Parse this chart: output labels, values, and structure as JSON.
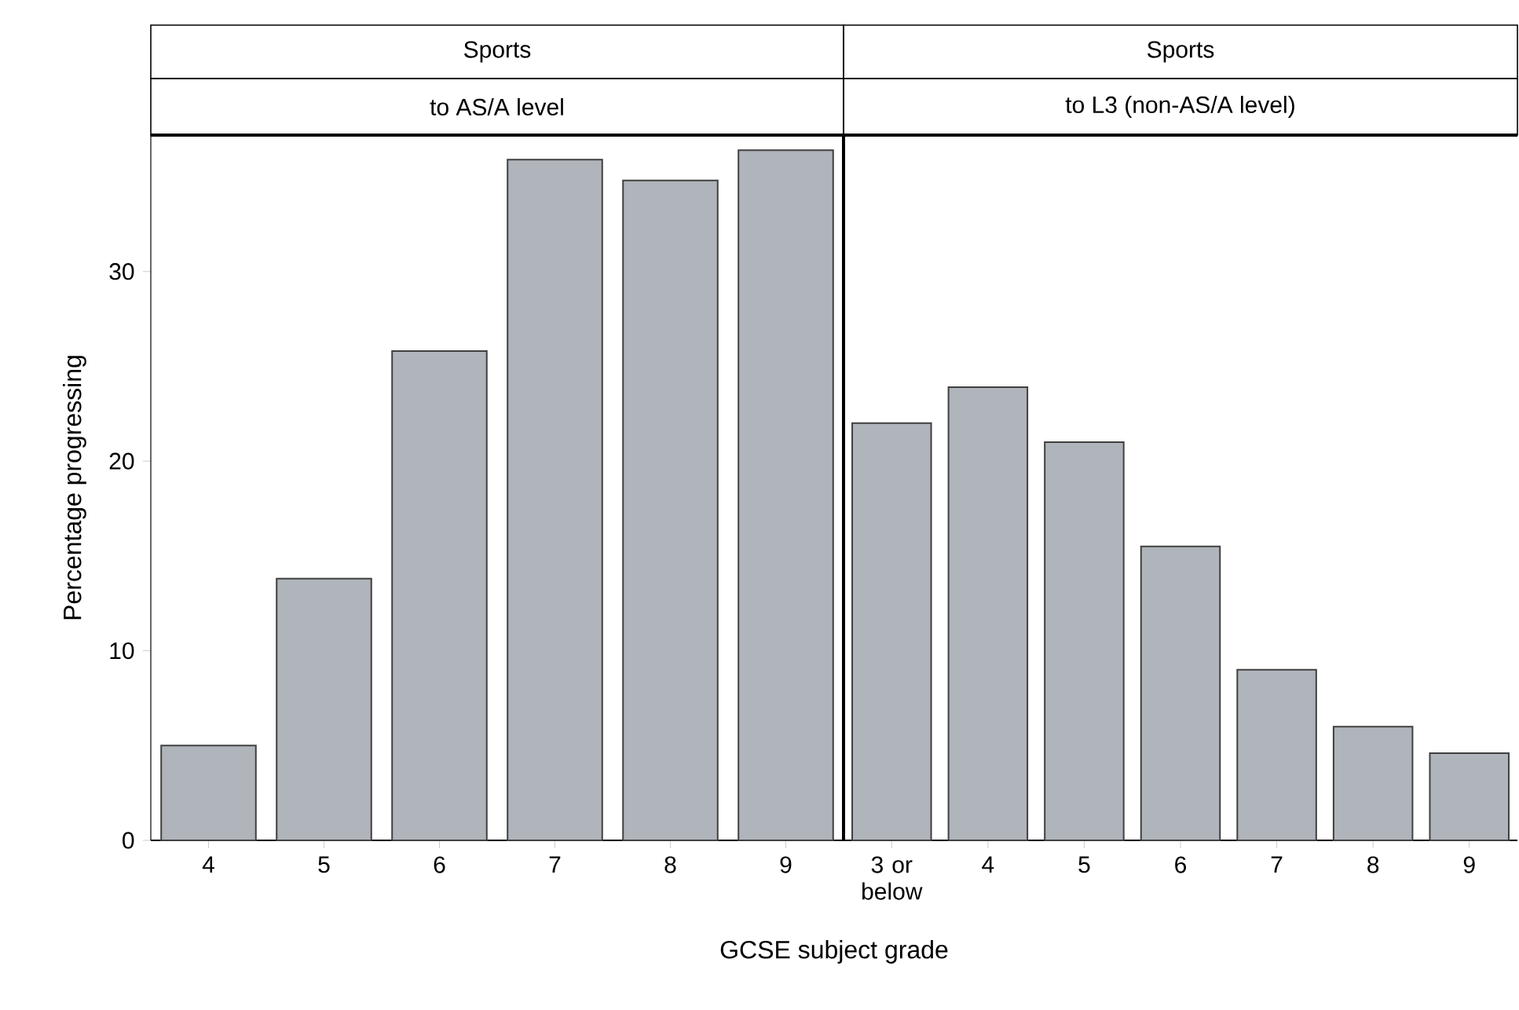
{
  "chart_data": [
    {
      "type": "bar",
      "title": "Sports",
      "subtitle": "to AS/A level",
      "ylabel": "Percentage progressing",
      "xlabel": "GCSE subject grade",
      "categories": [
        "4",
        "5",
        "6",
        "7",
        "8",
        "9"
      ],
      "values": [
        5.0,
        13.8,
        25.8,
        35.9,
        34.8,
        36.4
      ],
      "color": "#b0b4bb",
      "ylim": [
        0,
        37.2
      ],
      "yticks": [
        0,
        10,
        20,
        30
      ]
    },
    {
      "type": "bar",
      "title": "Sports",
      "subtitle": "to L3 (non-AS/A level)",
      "categories": [
        "3 or below",
        "4",
        "5",
        "6",
        "7",
        "8",
        "9"
      ],
      "values": [
        22.0,
        23.9,
        21.0,
        15.5,
        9.0,
        6.0,
        4.6
      ],
      "color": "#b0b4bb",
      "ylim": [
        0,
        37.2
      ],
      "tick_labels": "x"
    }
  ]
}
